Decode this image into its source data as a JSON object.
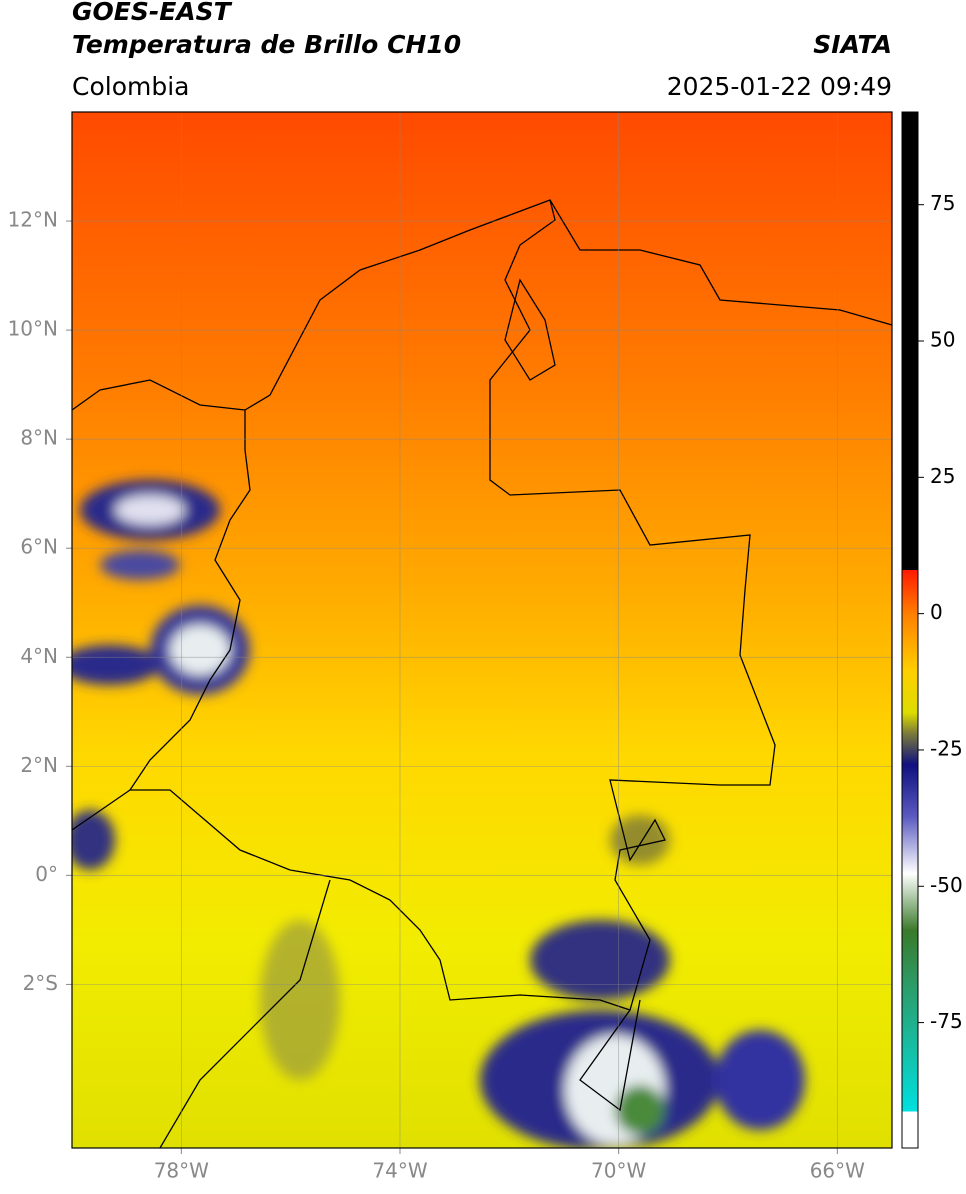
{
  "header": {
    "title": "GOES-EAST",
    "subtitle": "Temperatura de Brillo CH10",
    "source": "SIATA",
    "region": "Colombia",
    "timestamp": "2025-01-22 09:49"
  },
  "map": {
    "lon_range": [
      -80,
      -65
    ],
    "lat_range": [
      -5,
      14
    ],
    "lon_ticks": [
      {
        "value": -78,
        "label": "78°W"
      },
      {
        "value": -74,
        "label": "74°W"
      },
      {
        "value": -70,
        "label": "70°W"
      },
      {
        "value": -66,
        "label": "66°W"
      }
    ],
    "lat_ticks": [
      {
        "value": 12,
        "label": "12°N"
      },
      {
        "value": 10,
        "label": "10°N"
      },
      {
        "value": 8,
        "label": "8°N"
      },
      {
        "value": 6,
        "label": "6°N"
      },
      {
        "value": 4,
        "label": "4°N"
      },
      {
        "value": 2,
        "label": "2°N"
      },
      {
        "value": 0,
        "label": "0°"
      },
      {
        "value": -2,
        "label": "2°S"
      }
    ]
  },
  "colorbar": {
    "lim": [
      -98,
      92
    ],
    "ticks": [
      75,
      50,
      25,
      0,
      -25,
      -50,
      -75
    ]
  }
}
